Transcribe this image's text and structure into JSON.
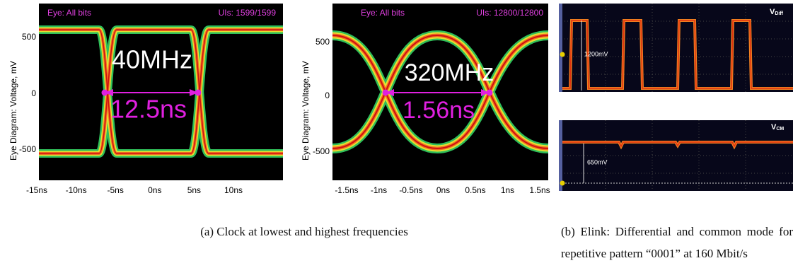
{
  "panels": [
    {
      "header_left": "Eye: All bits",
      "header_right": "UIs: 1599/1599",
      "y_label": "Eye Diagram: Voltage, mV",
      "y_ticks": [
        "500",
        "0",
        "-500"
      ],
      "x_ticks": [
        "-15ns",
        "-10ns",
        "-5ns",
        "0ns",
        "5ns",
        "10ns"
      ],
      "frequency": "40MHz",
      "period": "12.5ns"
    },
    {
      "header_left": "Eye: All bits",
      "header_right": "UIs: 12800/12800",
      "y_label": "Eye Diagram: Voltage, mV",
      "y_ticks": [
        "500",
        "0",
        "-500"
      ],
      "x_ticks": [
        "-1.5ns",
        "-1ns",
        "-0.5ns",
        "0ns",
        "0.5ns",
        "1ns",
        "1.5ns"
      ],
      "frequency": "320MHz",
      "period": "1.56ns"
    }
  ],
  "scopes": [
    {
      "label": "V",
      "subscript": "Diff",
      "amplitude": "1200mV"
    },
    {
      "label": "V",
      "subscript": "CM",
      "amplitude": "650mV"
    }
  ],
  "captions": [
    "(a) Clock at lowest and highest frequencies",
    "(b) Elink: Differential and common mode for repetitive pattern “0001” at 160 Mbit/s"
  ]
}
